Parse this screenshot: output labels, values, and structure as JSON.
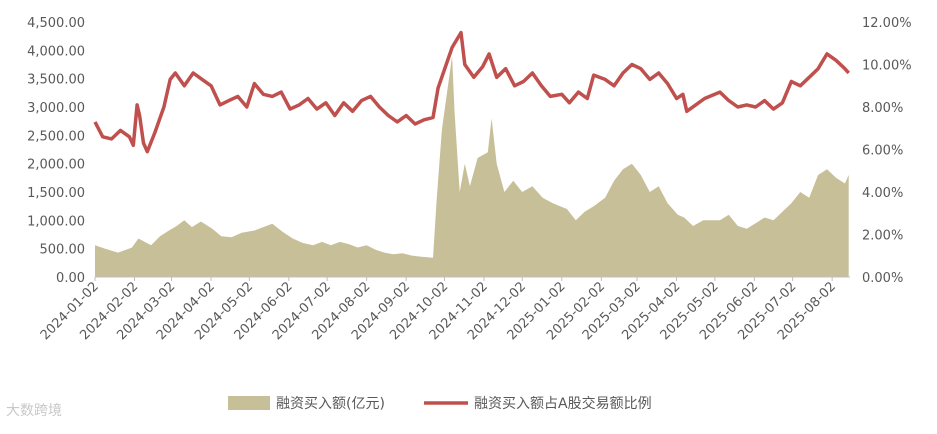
{
  "chart_data": {
    "type": "area+line",
    "title": "",
    "xlabel": "",
    "ylabel_left": "",
    "ylabel_right": "",
    "left_axis": {
      "min": 0,
      "max": 4500,
      "ticks": [
        "0.00",
        "500.00",
        "1,000.00",
        "1,500.00",
        "2,000.00",
        "2,500.00",
        "3,000.00",
        "3,500.00",
        "4,000.00",
        "4,500.00"
      ]
    },
    "right_axis": {
      "min": 0,
      "max": 12,
      "ticks": [
        "0.00%",
        "2.00%",
        "4.00%",
        "6.00%",
        "8.00%",
        "10.00%",
        "12.00%"
      ]
    },
    "x_ticks": [
      "2024-01-02",
      "2024-02-02",
      "2024-03-02",
      "2024-04-02",
      "2024-05-02",
      "2024-06-02",
      "2024-07-02",
      "2024-08-02",
      "2024-09-02",
      "2024-10-02",
      "2024-11-02",
      "2024-12-02",
      "2025-01-02",
      "2025-02-02",
      "2025-03-02",
      "2025-04-02",
      "2025-05-02",
      "2025-06-02",
      "2025-07-02",
      "2025-08-02"
    ],
    "series": [
      {
        "name": "融资买入额(亿元)",
        "type": "area",
        "axis": "left",
        "color": "#c7bf98",
        "points": [
          [
            "2024-01-02",
            560
          ],
          [
            "2024-01-10",
            500
          ],
          [
            "2024-01-20",
            430
          ],
          [
            "2024-01-31",
            520
          ],
          [
            "2024-02-05",
            680
          ],
          [
            "2024-02-15",
            560
          ],
          [
            "2024-02-22",
            720
          ],
          [
            "2024-02-29",
            820
          ],
          [
            "2024-03-06",
            900
          ],
          [
            "2024-03-12",
            1000
          ],
          [
            "2024-03-18",
            880
          ],
          [
            "2024-03-25",
            980
          ],
          [
            "2024-04-03",
            850
          ],
          [
            "2024-04-10",
            720
          ],
          [
            "2024-04-18",
            700
          ],
          [
            "2024-04-26",
            780
          ],
          [
            "2024-05-06",
            820
          ],
          [
            "2024-05-13",
            880
          ],
          [
            "2024-05-20",
            940
          ],
          [
            "2024-05-28",
            800
          ],
          [
            "2024-06-05",
            680
          ],
          [
            "2024-06-13",
            600
          ],
          [
            "2024-06-21",
            560
          ],
          [
            "2024-06-28",
            620
          ],
          [
            "2024-07-05",
            560
          ],
          [
            "2024-07-12",
            620
          ],
          [
            "2024-07-19",
            580
          ],
          [
            "2024-07-26",
            520
          ],
          [
            "2024-08-02",
            560
          ],
          [
            "2024-08-09",
            480
          ],
          [
            "2024-08-16",
            430
          ],
          [
            "2024-08-23",
            400
          ],
          [
            "2024-08-30",
            420
          ],
          [
            "2024-09-06",
            380
          ],
          [
            "2024-09-13",
            360
          ],
          [
            "2024-09-23",
            340
          ],
          [
            "2024-09-26",
            1400
          ],
          [
            "2024-09-30",
            2600
          ],
          [
            "2024-10-08",
            3900
          ],
          [
            "2024-10-10",
            2900
          ],
          [
            "2024-10-14",
            1500
          ],
          [
            "2024-10-18",
            2000
          ],
          [
            "2024-10-22",
            1600
          ],
          [
            "2024-10-28",
            2100
          ],
          [
            "2024-11-05",
            2200
          ],
          [
            "2024-11-08",
            2800
          ],
          [
            "2024-11-12",
            2000
          ],
          [
            "2024-11-18",
            1500
          ],
          [
            "2024-11-25",
            1700
          ],
          [
            "2024-12-02",
            1500
          ],
          [
            "2024-12-10",
            1600
          ],
          [
            "2024-12-18",
            1400
          ],
          [
            "2024-12-26",
            1300
          ],
          [
            "2025-01-06",
            1200
          ],
          [
            "2025-01-13",
            1000
          ],
          [
            "2025-01-20",
            1150
          ],
          [
            "2025-01-27",
            1250
          ],
          [
            "2025-02-05",
            1400
          ],
          [
            "2025-02-12",
            1700
          ],
          [
            "2025-02-19",
            1900
          ],
          [
            "2025-02-26",
            2000
          ],
          [
            "2025-03-05",
            1800
          ],
          [
            "2025-03-12",
            1500
          ],
          [
            "2025-03-19",
            1600
          ],
          [
            "2025-03-26",
            1300
          ],
          [
            "2025-04-03",
            1100
          ],
          [
            "2025-04-08",
            1050
          ],
          [
            "2025-04-15",
            900
          ],
          [
            "2025-04-23",
            1000
          ],
          [
            "2025-05-06",
            1000
          ],
          [
            "2025-05-13",
            1100
          ],
          [
            "2025-05-20",
            900
          ],
          [
            "2025-05-27",
            850
          ],
          [
            "2025-06-03",
            950
          ],
          [
            "2025-06-10",
            1050
          ],
          [
            "2025-06-17",
            1000
          ],
          [
            "2025-06-24",
            1150
          ],
          [
            "2025-07-01",
            1300
          ],
          [
            "2025-07-08",
            1500
          ],
          [
            "2025-07-15",
            1400
          ],
          [
            "2025-07-22",
            1800
          ],
          [
            "2025-07-29",
            1900
          ],
          [
            "2025-08-05",
            1750
          ],
          [
            "2025-08-12",
            1650
          ],
          [
            "2025-08-15",
            1800
          ]
        ]
      },
      {
        "name": "融资买入额占A股交易额比例",
        "type": "line",
        "axis": "right",
        "color": "#c0504d",
        "points": [
          [
            "2024-01-02",
            7.3
          ],
          [
            "2024-01-08",
            6.6
          ],
          [
            "2024-01-15",
            6.5
          ],
          [
            "2024-01-22",
            6.9
          ],
          [
            "2024-01-29",
            6.6
          ],
          [
            "2024-02-01",
            6.2
          ],
          [
            "2024-02-04",
            8.1
          ],
          [
            "2024-02-06",
            7.6
          ],
          [
            "2024-02-09",
            6.3
          ],
          [
            "2024-02-12",
            5.9
          ],
          [
            "2024-02-18",
            6.8
          ],
          [
            "2024-02-25",
            8.0
          ],
          [
            "2024-03-01",
            9.3
          ],
          [
            "2024-03-05",
            9.6
          ],
          [
            "2024-03-12",
            9.0
          ],
          [
            "2024-03-19",
            9.6
          ],
          [
            "2024-03-26",
            9.3
          ],
          [
            "2024-04-02",
            9.0
          ],
          [
            "2024-04-09",
            8.1
          ],
          [
            "2024-04-16",
            8.3
          ],
          [
            "2024-04-23",
            8.5
          ],
          [
            "2024-04-30",
            8.0
          ],
          [
            "2024-05-06",
            9.1
          ],
          [
            "2024-05-13",
            8.6
          ],
          [
            "2024-05-20",
            8.5
          ],
          [
            "2024-05-27",
            8.7
          ],
          [
            "2024-06-03",
            7.9
          ],
          [
            "2024-06-10",
            8.1
          ],
          [
            "2024-06-17",
            8.4
          ],
          [
            "2024-06-24",
            7.9
          ],
          [
            "2024-07-01",
            8.2
          ],
          [
            "2024-07-08",
            7.6
          ],
          [
            "2024-07-15",
            8.2
          ],
          [
            "2024-07-22",
            7.8
          ],
          [
            "2024-07-29",
            8.3
          ],
          [
            "2024-08-05",
            8.5
          ],
          [
            "2024-08-12",
            8.0
          ],
          [
            "2024-08-19",
            7.6
          ],
          [
            "2024-08-26",
            7.3
          ],
          [
            "2024-09-02",
            7.6
          ],
          [
            "2024-09-09",
            7.2
          ],
          [
            "2024-09-16",
            7.4
          ],
          [
            "2024-09-23",
            7.5
          ],
          [
            "2024-09-27",
            8.9
          ],
          [
            "2024-10-08",
            10.8
          ],
          [
            "2024-10-15",
            11.5
          ],
          [
            "2024-10-18",
            10.0
          ],
          [
            "2024-10-25",
            9.4
          ],
          [
            "2024-11-01",
            9.9
          ],
          [
            "2024-11-06",
            10.5
          ],
          [
            "2024-11-12",
            9.4
          ],
          [
            "2024-11-19",
            9.8
          ],
          [
            "2024-11-26",
            9.0
          ],
          [
            "2024-12-03",
            9.2
          ],
          [
            "2024-12-10",
            9.6
          ],
          [
            "2024-12-17",
            9.0
          ],
          [
            "2024-12-24",
            8.5
          ],
          [
            "2025-01-02",
            8.6
          ],
          [
            "2025-01-08",
            8.2
          ],
          [
            "2025-01-15",
            8.7
          ],
          [
            "2025-01-22",
            8.4
          ],
          [
            "2025-01-27",
            9.5
          ],
          [
            "2025-02-05",
            9.3
          ],
          [
            "2025-02-12",
            9.0
          ],
          [
            "2025-02-19",
            9.6
          ],
          [
            "2025-02-26",
            10.0
          ],
          [
            "2025-03-05",
            9.8
          ],
          [
            "2025-03-12",
            9.3
          ],
          [
            "2025-03-19",
            9.6
          ],
          [
            "2025-03-26",
            9.1
          ],
          [
            "2025-04-02",
            8.4
          ],
          [
            "2025-04-07",
            8.6
          ],
          [
            "2025-04-10",
            7.8
          ],
          [
            "2025-04-17",
            8.1
          ],
          [
            "2025-04-24",
            8.4
          ],
          [
            "2025-05-06",
            8.7
          ],
          [
            "2025-05-13",
            8.3
          ],
          [
            "2025-05-20",
            8.0
          ],
          [
            "2025-05-27",
            8.1
          ],
          [
            "2025-06-03",
            8.0
          ],
          [
            "2025-06-10",
            8.3
          ],
          [
            "2025-06-17",
            7.9
          ],
          [
            "2025-06-24",
            8.2
          ],
          [
            "2025-07-01",
            9.2
          ],
          [
            "2025-07-08",
            9.0
          ],
          [
            "2025-07-15",
            9.4
          ],
          [
            "2025-07-22",
            9.8
          ],
          [
            "2025-07-29",
            10.5
          ],
          [
            "2025-08-05",
            10.2
          ],
          [
            "2025-08-12",
            9.8
          ],
          [
            "2025-08-15",
            9.6
          ]
        ]
      }
    ],
    "legend": {
      "position": "bottom"
    },
    "grid": false
  },
  "watermark": "大数跨境"
}
